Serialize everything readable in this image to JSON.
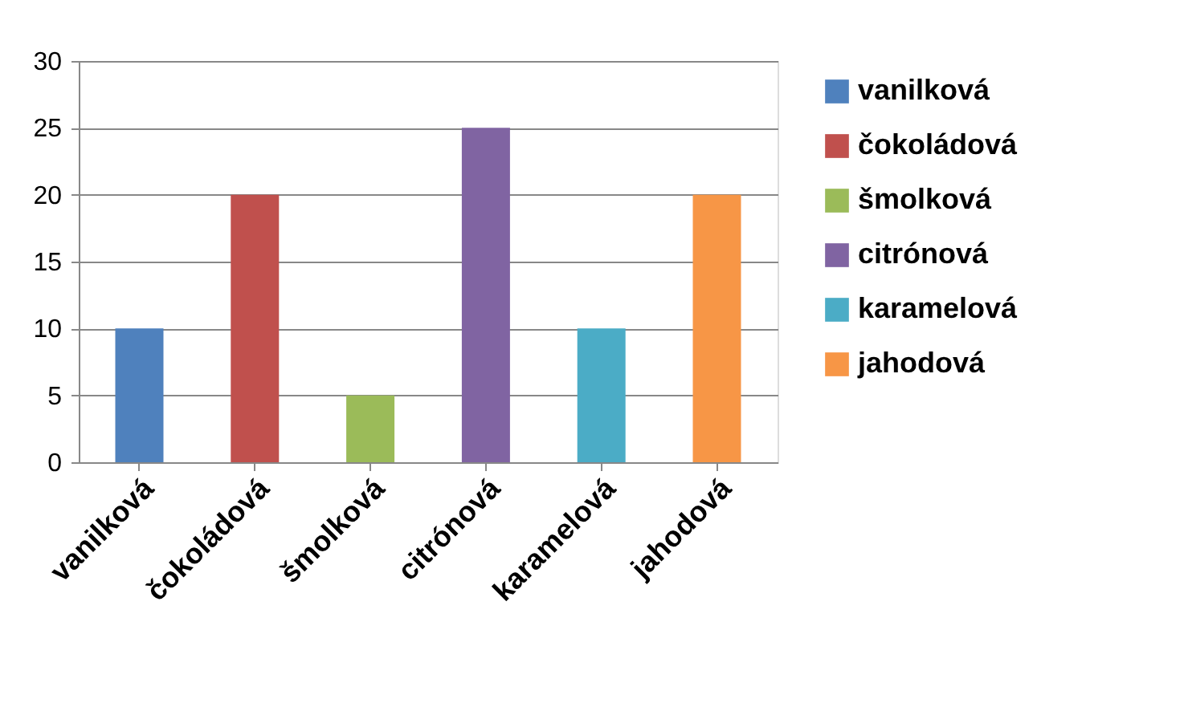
{
  "chart_data": {
    "type": "bar",
    "categories": [
      "vanilková",
      "čokoládová",
      "šmolková",
      "citrónová",
      "karamelová",
      "jahodová"
    ],
    "series": [
      {
        "name": "vanilková",
        "color": "#4f81bd",
        "values": [
          10,
          null,
          null,
          null,
          null,
          null
        ]
      },
      {
        "name": "čokoládová",
        "color": "#c0504d",
        "values": [
          null,
          20,
          null,
          null,
          null,
          null
        ]
      },
      {
        "name": "šmolková",
        "color": "#9bbb59",
        "values": [
          null,
          null,
          5,
          null,
          null,
          null
        ]
      },
      {
        "name": "citrónová",
        "color": "#8064a2",
        "values": [
          null,
          null,
          null,
          25,
          null,
          null
        ]
      },
      {
        "name": "karamelová",
        "color": "#4bacc6",
        "values": [
          null,
          null,
          null,
          null,
          10,
          null
        ]
      },
      {
        "name": "jahodová",
        "color": "#f79646",
        "values": [
          null,
          null,
          null,
          null,
          null,
          20
        ]
      }
    ],
    "ylim": [
      0,
      30
    ],
    "yticks": [
      0,
      5,
      10,
      15,
      20,
      25,
      30
    ],
    "grid": "y",
    "legend": "right"
  }
}
